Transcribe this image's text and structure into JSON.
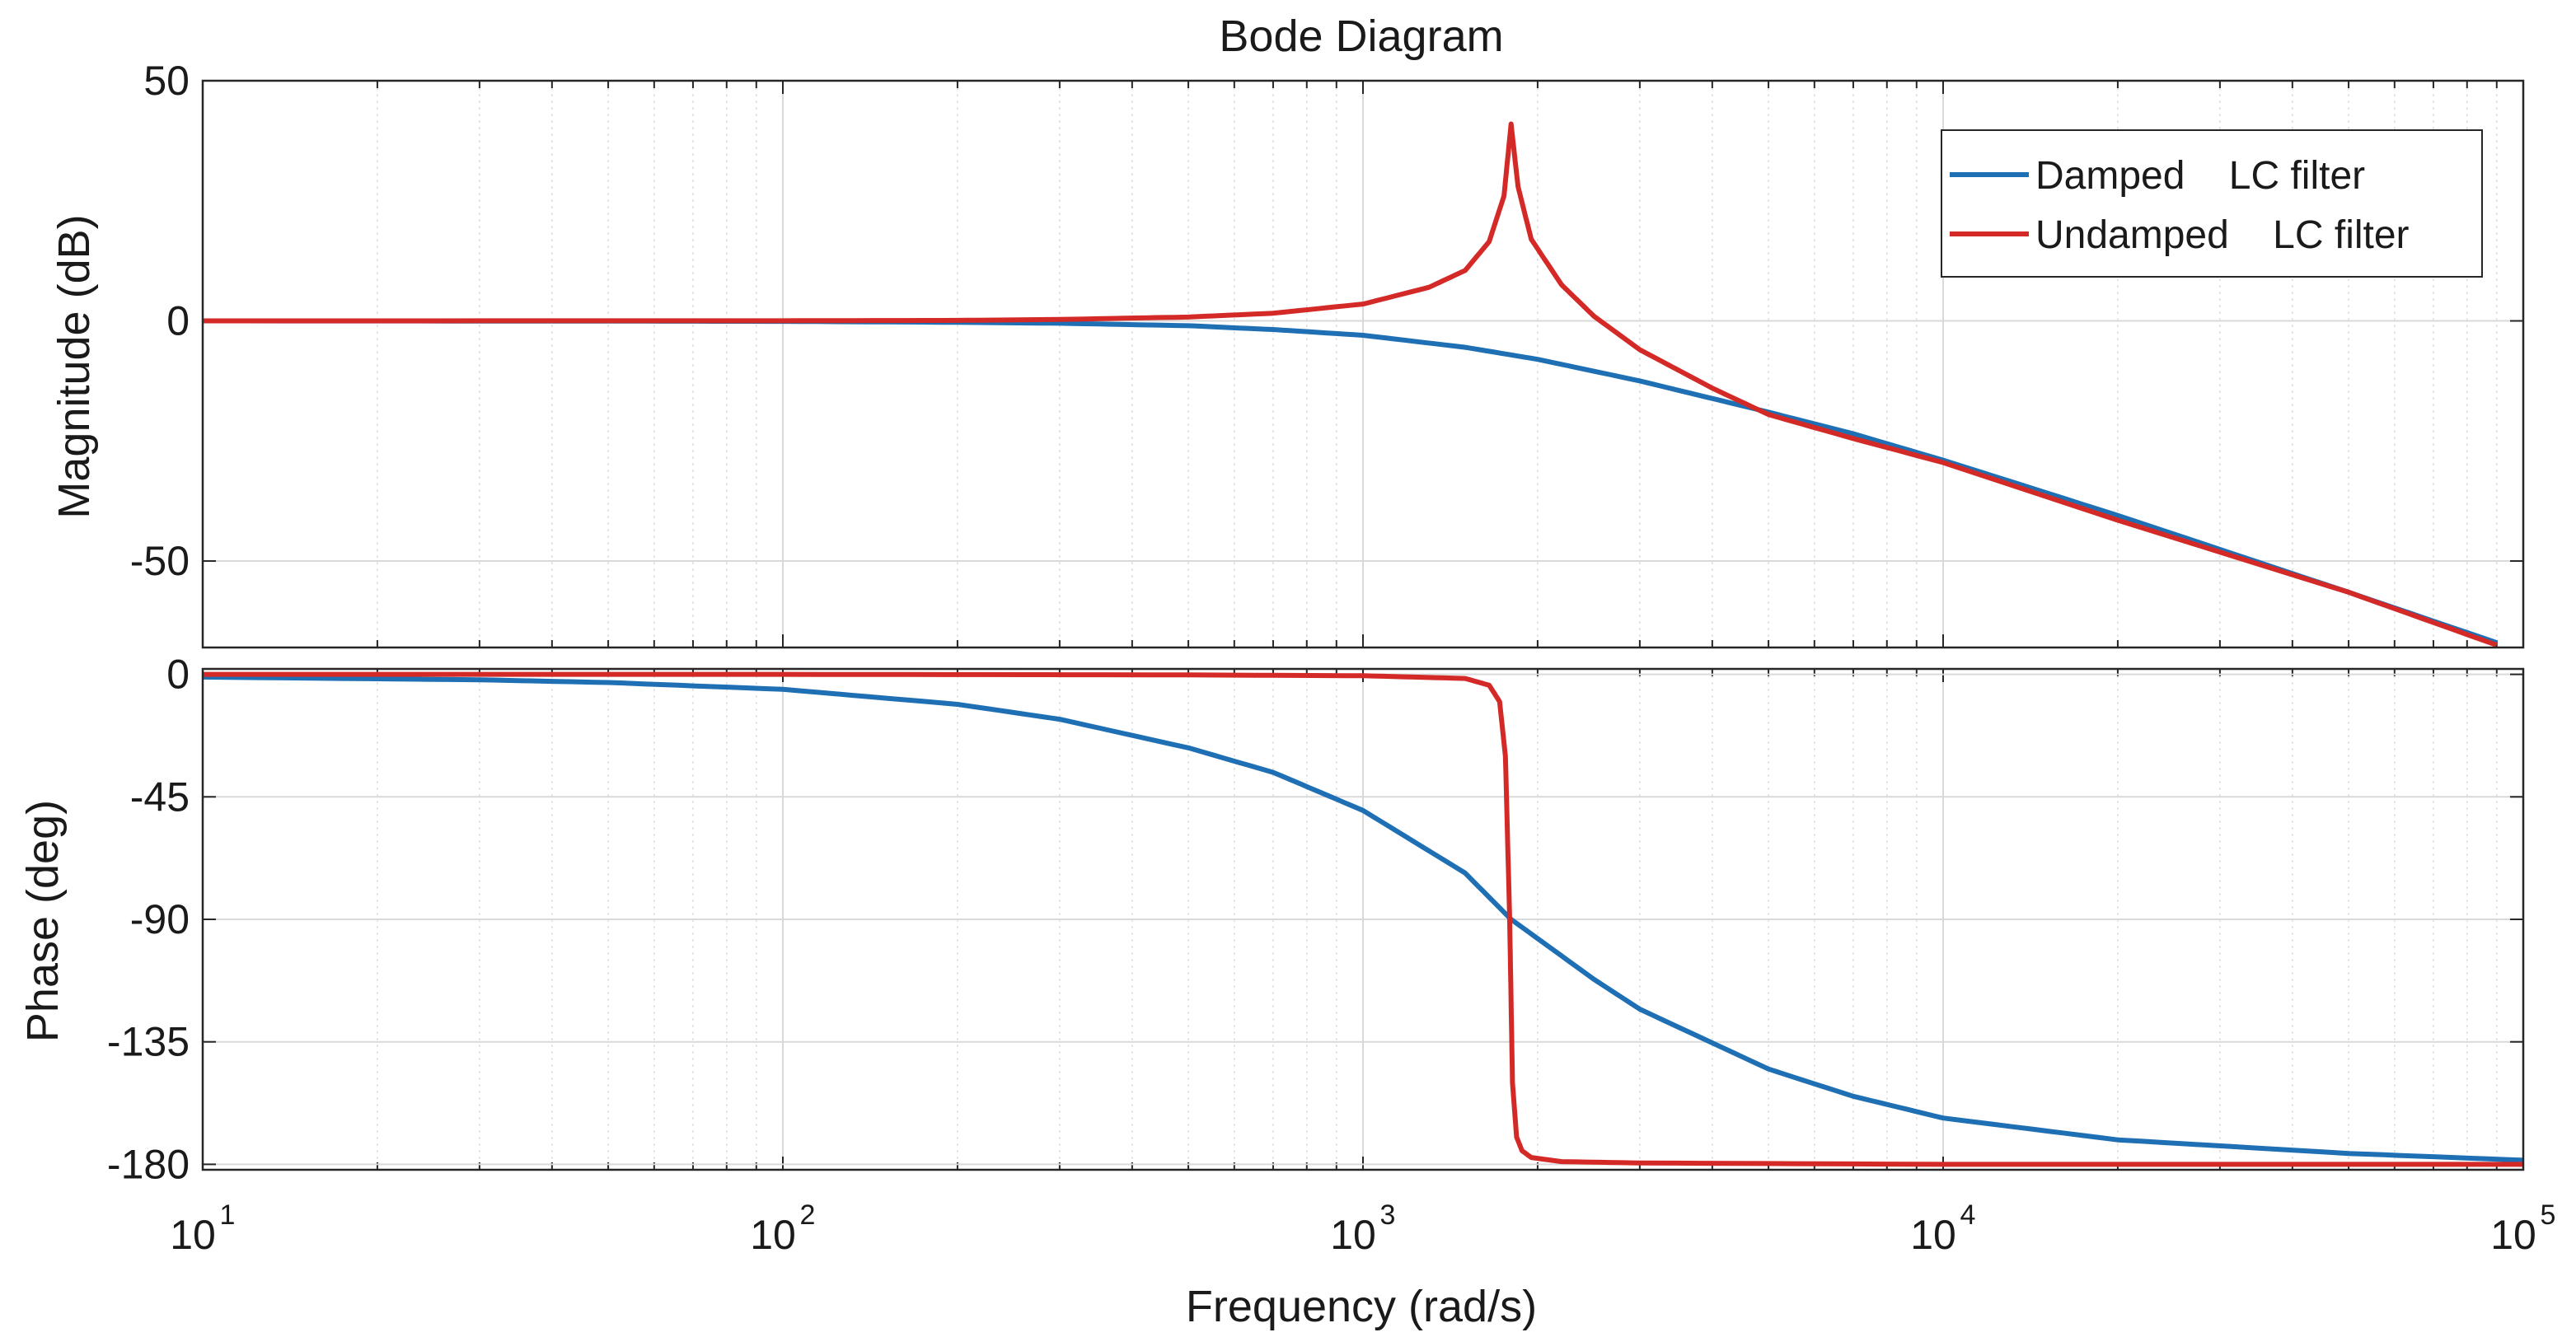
{
  "chart_data": {
    "type": "line",
    "title": "Bode Diagram",
    "xlabel": "Frequency  (rad/s)",
    "x_scale": "log",
    "xlim": [
      10,
      100000
    ],
    "x_ticks": [
      {
        "value": 10,
        "base": "10",
        "exp": "1"
      },
      {
        "value": 100,
        "base": "10",
        "exp": "2"
      },
      {
        "value": 1000,
        "base": "10",
        "exp": "3"
      },
      {
        "value": 10000,
        "base": "10",
        "exp": "4"
      },
      {
        "value": 100000,
        "base": "10",
        "exp": "5"
      }
    ],
    "grid": true,
    "legend_position": "top-right",
    "subplots": [
      {
        "id": "magnitude",
        "ylabel": "Magnitude (dB)",
        "ylim": [
          -68,
          50
        ],
        "yticks": [
          50,
          0,
          -50
        ],
        "ytick_labels": [
          "50",
          "0",
          "-50"
        ],
        "series": [
          {
            "name": "Damped    LC filter",
            "color": "#1f6fb4",
            "x": [
              10,
              50,
              100,
              200,
              300,
              500,
              700,
              1000,
              1500,
              2000,
              3000,
              5000,
              7000,
              10000,
              20000,
              50000,
              90000
            ],
            "y": [
              0,
              -0.04,
              -0.1,
              -0.3,
              -0.5,
              -1.0,
              -1.8,
              -3.0,
              -5.5,
              -8.0,
              -12.5,
              -19.0,
              -23.5,
              -29.0,
              -40.5,
              -56.5,
              -67.0
            ]
          },
          {
            "name": "Undamped    LC filter",
            "color": "#d42a27",
            "x": [
              10,
              100,
              200,
              300,
              500,
              700,
              1000,
              1300,
              1500,
              1650,
              1750,
              1800,
              1850,
              1950,
              2200,
              2500,
              3000,
              4000,
              5000,
              7000,
              10000,
              20000,
              50000,
              90000
            ],
            "y": [
              0,
              0.03,
              0.1,
              0.3,
              0.8,
              1.6,
              3.5,
              7.0,
              10.5,
              16.5,
              26.0,
              41.0,
              28.0,
              17.0,
              7.5,
              1.0,
              -6.0,
              -14.0,
              -19.5,
              -24.5,
              -29.5,
              -41.5,
              -56.5,
              -67.5
            ]
          }
        ]
      },
      {
        "id": "phase",
        "ylabel": "Phase (deg)",
        "ylim": [
          -182,
          2
        ],
        "yticks": [
          0,
          -45,
          -90,
          -135,
          -180
        ],
        "ytick_labels": [
          "0",
          "-45",
          "-90",
          "-135",
          "-180"
        ],
        "series": [
          {
            "name": "Damped    LC filter",
            "color": "#1f6fb4",
            "x": [
              10,
              30,
              50,
              100,
              200,
              300,
              500,
              700,
              1000,
              1500,
              1800,
              2500,
              3000,
              5000,
              7000,
              10000,
              20000,
              50000,
              100000
            ],
            "y": [
              -1.0,
              -2.0,
              -3.0,
              -5.5,
              -11.0,
              -16.5,
              -27.0,
              -36.0,
              -50.0,
              -73.0,
              -90.0,
              -112.0,
              -123.0,
              -145.0,
              -155.0,
              -163.0,
              -171.0,
              -176.0,
              -178.5
            ]
          },
          {
            "name": "Undamped    LC filter",
            "color": "#d42a27",
            "x": [
              10,
              100,
              500,
              1000,
              1500,
              1650,
              1720,
              1760,
              1790,
              1810,
              1840,
              1880,
              1950,
              2200,
              3000,
              10000,
              100000
            ],
            "y": [
              0,
              0,
              -0.2,
              -0.5,
              -1.5,
              -4.0,
              -10.0,
              -30.0,
              -90.0,
              -150.0,
              -170.0,
              -175.0,
              -177.5,
              -179.0,
              -179.5,
              -180.0,
              -180.0
            ]
          }
        ]
      }
    ]
  }
}
